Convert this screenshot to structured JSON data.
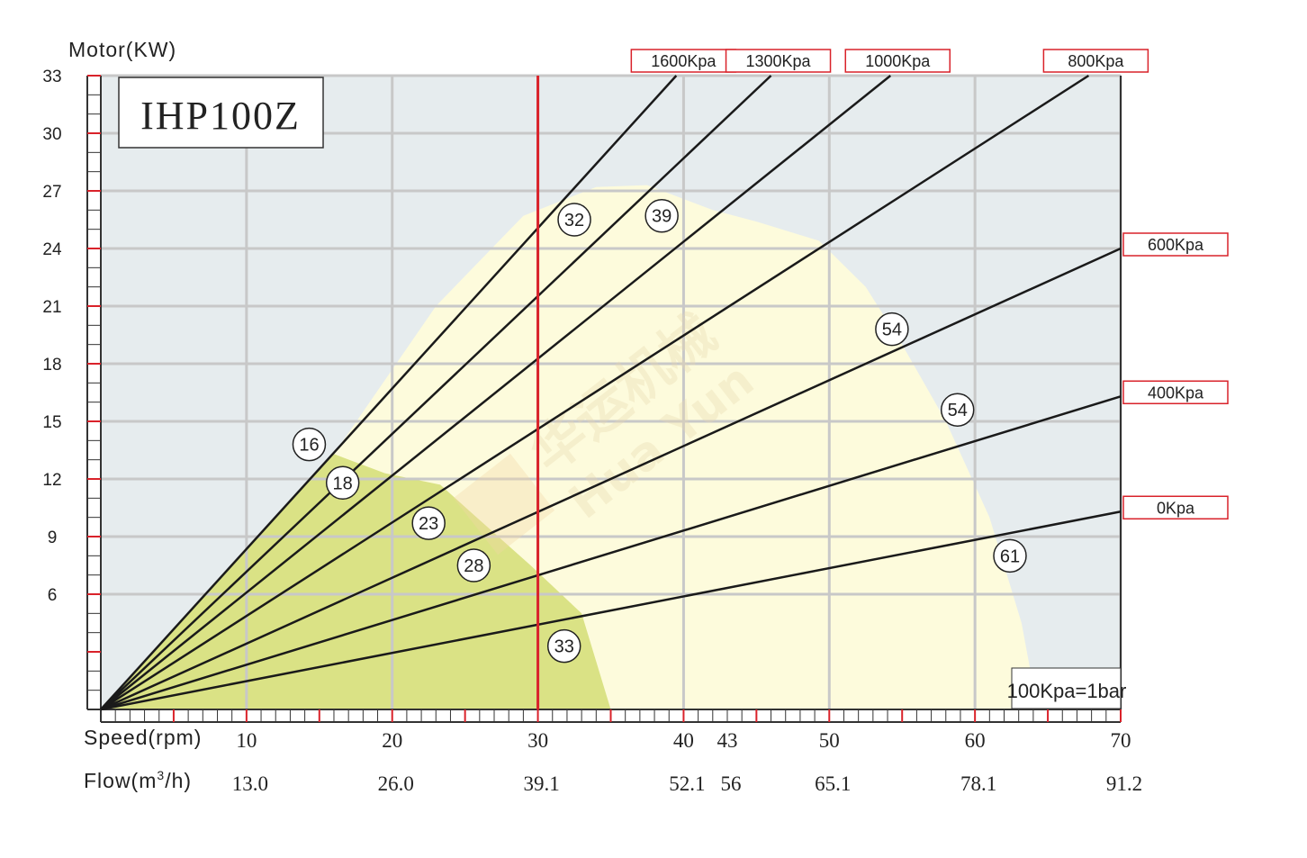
{
  "chart_data": {
    "type": "line",
    "title": "IHP100Z",
    "ylabel": "Motor(KW)",
    "y_ticks": [
      6,
      9,
      12,
      15,
      18,
      21,
      24,
      27,
      30,
      33
    ],
    "ylim": [
      0,
      33
    ],
    "xlim": [
      0,
      70
    ],
    "speed_label": "Speed(rpm)",
    "speed_ticks": [
      "10",
      "20",
      "30",
      "40",
      "43",
      "50",
      "60",
      "70"
    ],
    "speed_values": [
      10,
      20,
      30,
      40,
      43,
      50,
      60,
      70
    ],
    "flow_label_pre": "Flow(m",
    "flow_label_sup": "3",
    "flow_label_post": "/h)",
    "flow_ticks": [
      "13.0",
      "26.0",
      "39.1",
      "52.1",
      "56",
      "65.1",
      "78.1",
      "91.2"
    ],
    "reference_speed": 30,
    "note": "100Kpa=1bar",
    "series": [
      {
        "name": "1600Kpa",
        "x": [
          0,
          39.5
        ],
        "y": [
          0,
          33
        ]
      },
      {
        "name": "1300Kpa",
        "x": [
          0,
          46
        ],
        "y": [
          0,
          33
        ]
      },
      {
        "name": "1000Kpa",
        "x": [
          0,
          54.2
        ],
        "y": [
          0,
          33
        ]
      },
      {
        "name": "800Kpa",
        "x": [
          0,
          67.8
        ],
        "y": [
          0,
          33
        ]
      },
      {
        "name": "600Kpa",
        "x": [
          0,
          70
        ],
        "y": [
          0,
          24
        ]
      },
      {
        "name": "400Kpa",
        "x": [
          0,
          70
        ],
        "y": [
          0,
          16.3
        ]
      },
      {
        "name": "0Kpa",
        "x": [
          0,
          70
        ],
        "y": [
          0,
          10.3
        ]
      }
    ],
    "annotations": [
      {
        "label": "16",
        "x": 14.3,
        "y": 13.8
      },
      {
        "label": "18",
        "x": 16.6,
        "y": 11.8
      },
      {
        "label": "23",
        "x": 22.5,
        "y": 9.7
      },
      {
        "label": "28",
        "x": 25.6,
        "y": 7.5
      },
      {
        "label": "32",
        "x": 32.5,
        "y": 25.5
      },
      {
        "label": "39",
        "x": 38.5,
        "y": 25.7
      },
      {
        "label": "33",
        "x": 31.8,
        "y": 3.3
      },
      {
        "label": "54",
        "x": 54.3,
        "y": 19.8
      },
      {
        "label": "54",
        "x": 58.8,
        "y": 15.6
      },
      {
        "label": "61",
        "x": 62.4,
        "y": 8.0
      }
    ],
    "regions": {
      "outer_fill": "#fdfbdc",
      "inner_fill": "#dae285",
      "background": "#e6ecee",
      "outer": [
        [
          0,
          0
        ],
        [
          16,
          13.3
        ],
        [
          23,
          21
        ],
        [
          29,
          25.7
        ],
        [
          34,
          27.2
        ],
        [
          37.5,
          27.3
        ],
        [
          42,
          26
        ],
        [
          45,
          25.4
        ],
        [
          49.3,
          24.4
        ],
        [
          52.5,
          22
        ],
        [
          55,
          19
        ],
        [
          58,
          15
        ],
        [
          61,
          10
        ],
        [
          63.2,
          4.5
        ],
        [
          64.3,
          0
        ]
      ],
      "inner": [
        [
          0,
          0
        ],
        [
          16,
          13.3
        ],
        [
          19.5,
          12.3
        ],
        [
          23.3,
          11.7
        ],
        [
          25.8,
          10
        ],
        [
          29.5,
          7.5
        ],
        [
          33,
          5
        ],
        [
          35,
          0
        ]
      ]
    },
    "colors": {
      "lines": "#1a1a1a",
      "reference_line": "#d9222a",
      "label_border": "#d9222a",
      "grid": "#c8c8c8",
      "axis_ticks": "#d9222a"
    }
  }
}
